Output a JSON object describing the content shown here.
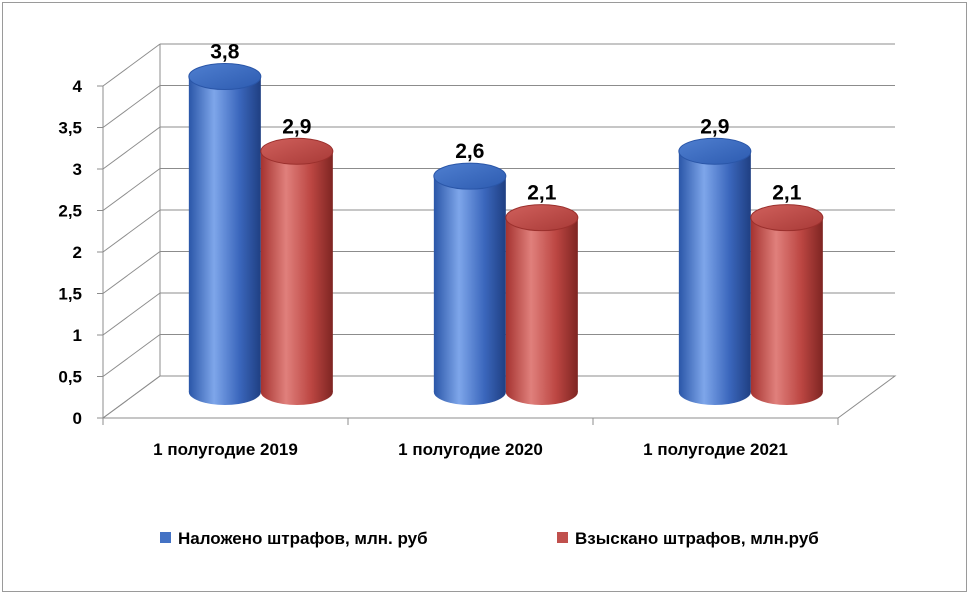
{
  "chart_data": {
    "type": "bar",
    "title": "",
    "xlabel": "",
    "ylabel": "",
    "categories": [
      "1 полугодие 2019",
      "1 полугодие 2020",
      "1 полугодие 2021"
    ],
    "series": [
      {
        "name": "Наложено штрафов, млн. руб",
        "values": [
          3.8,
          2.6,
          2.9
        ],
        "value_labels": [
          "3,8",
          "2,6",
          "2,9"
        ],
        "color": "#4472C4"
      },
      {
        "name": "Взыскано штрафов, млн.руб",
        "values": [
          2.9,
          2.1,
          2.1
        ],
        "value_labels": [
          "2,9",
          "2,1",
          "2,1"
        ],
        "color": "#C0504D"
      }
    ],
    "ylim": [
      0,
      4
    ],
    "yticks": [
      0,
      0.5,
      1,
      1.5,
      2,
      2.5,
      3,
      3.5,
      4
    ],
    "ytick_labels": [
      "0",
      "0,5",
      "1",
      "1,5",
      "2",
      "2,5",
      "3",
      "3,5",
      "4"
    ],
    "grid": true,
    "style": "3d-cylinder",
    "legend_position": "bottom"
  }
}
